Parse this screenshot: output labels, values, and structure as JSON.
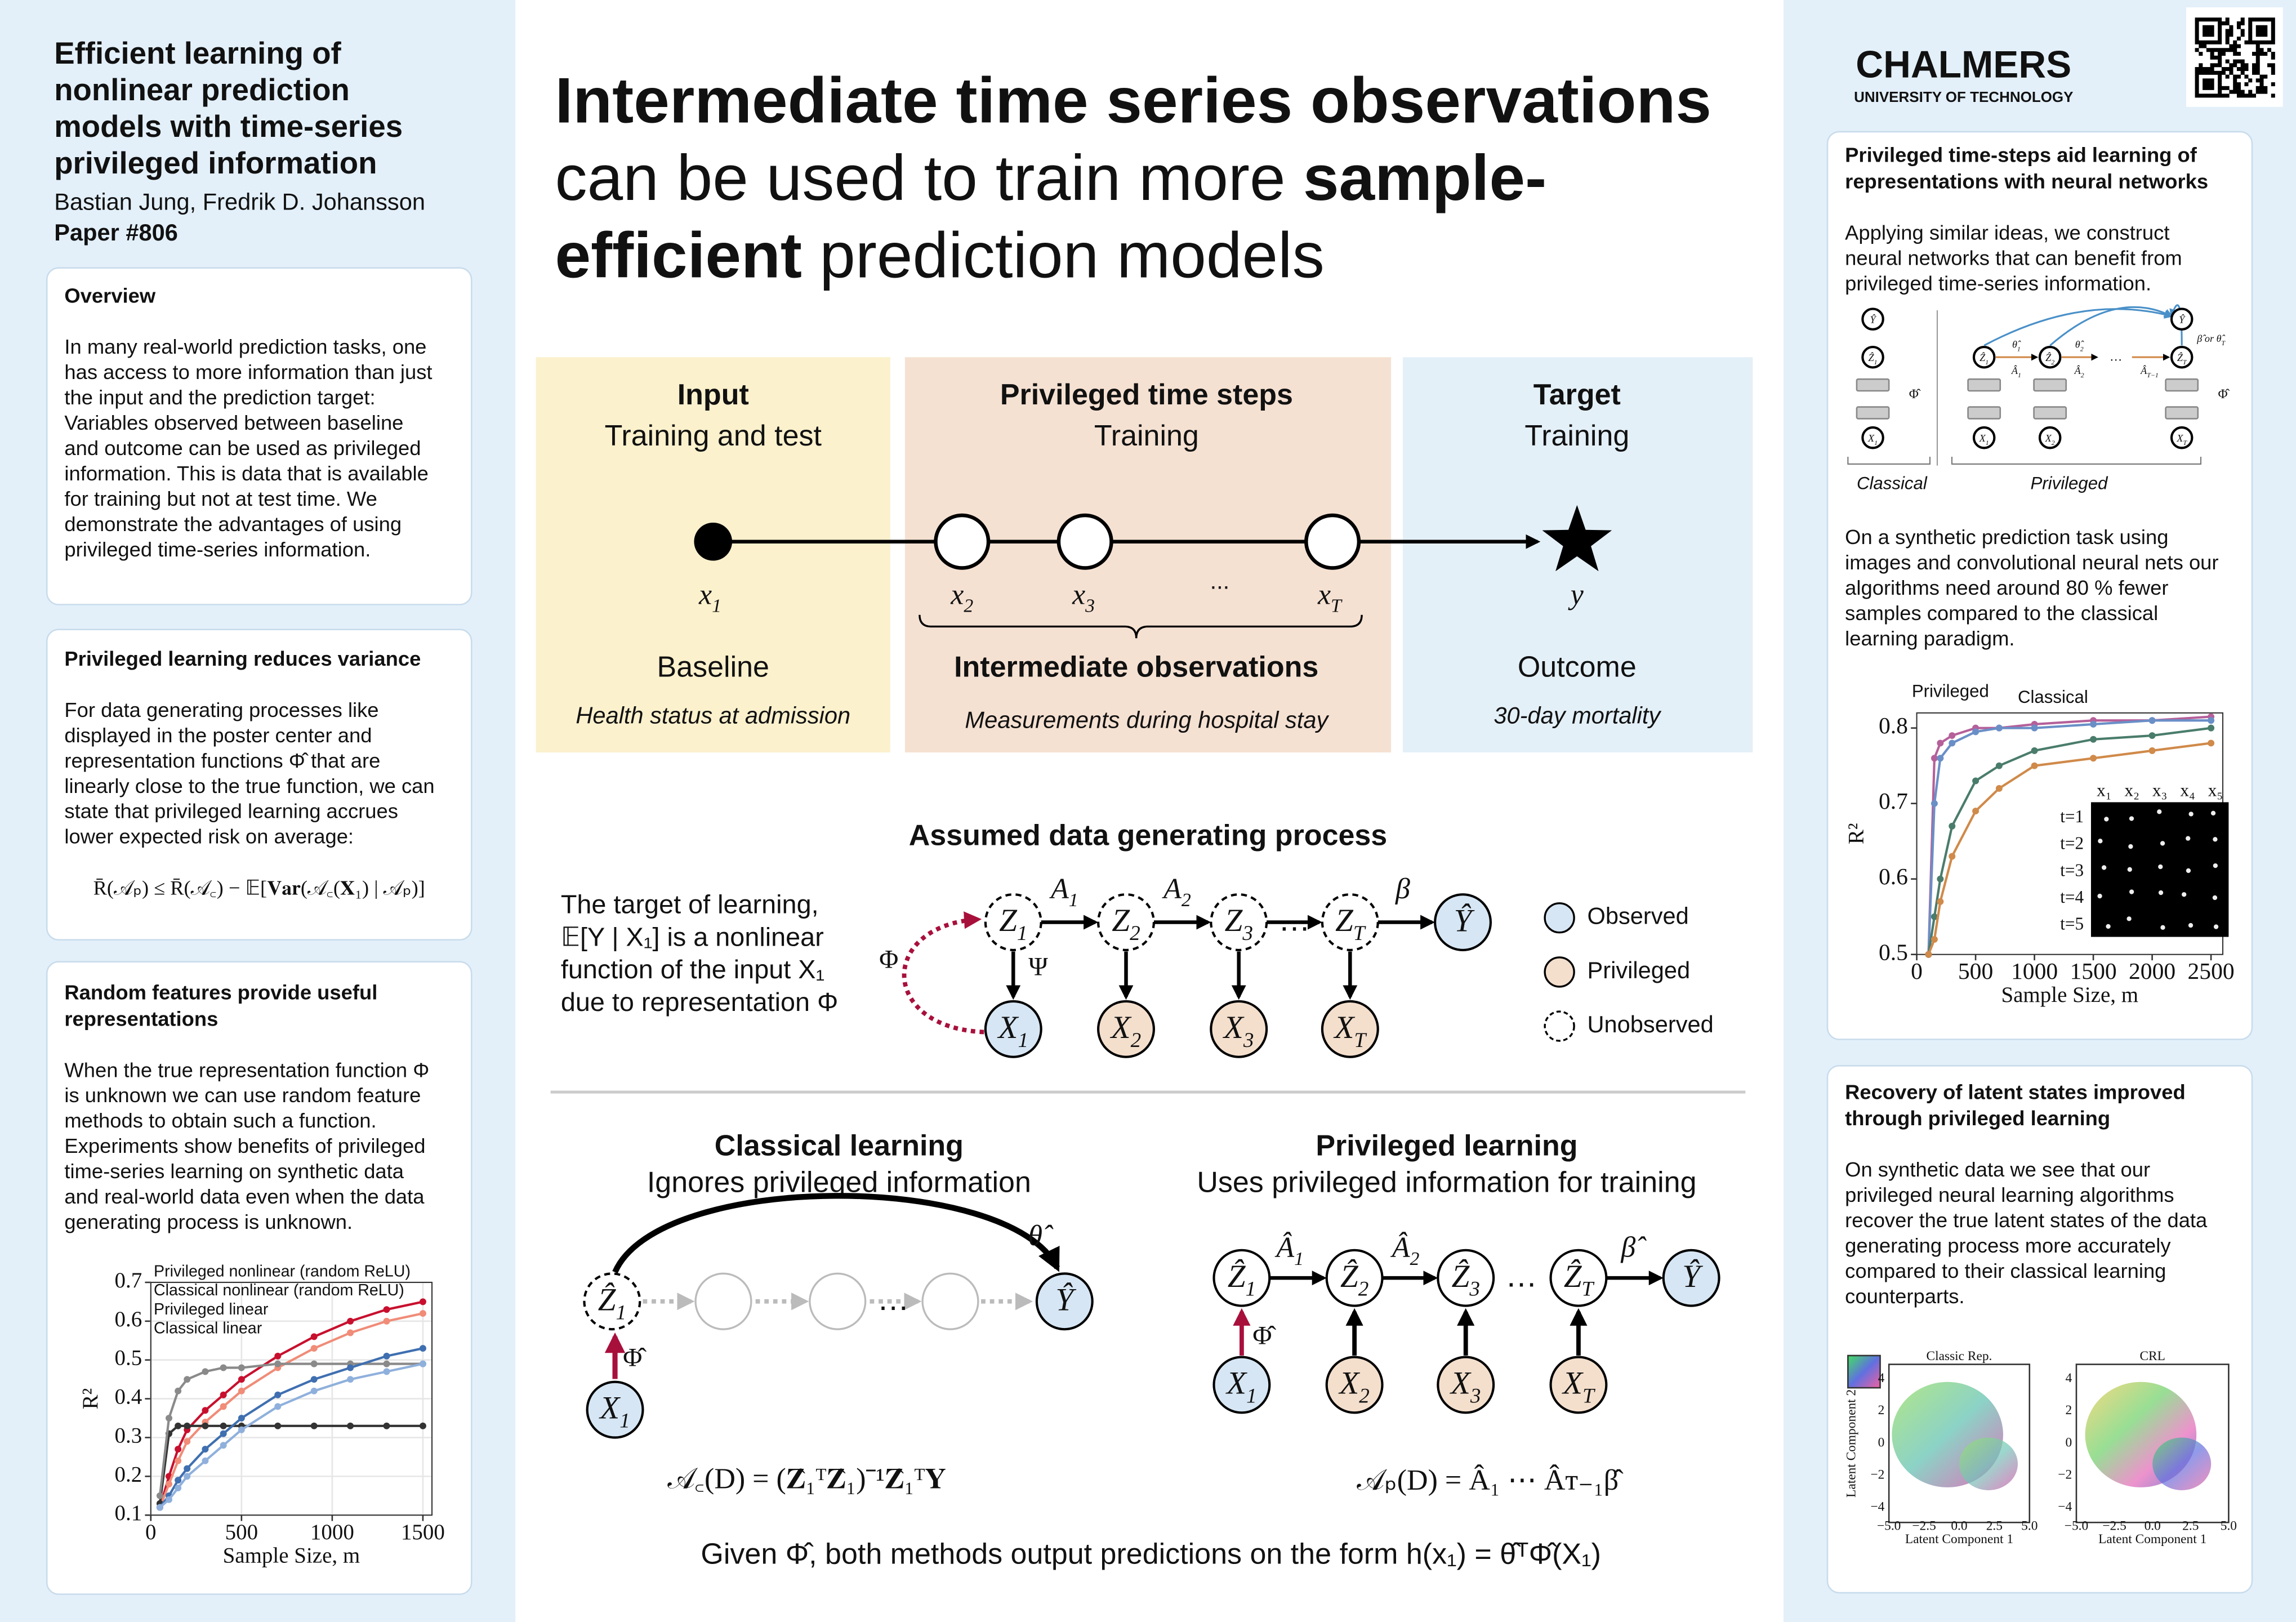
{
  "header": {
    "title": [
      "Efficient learning of",
      "nonlinear prediction",
      "models with time-series",
      "privileged information"
    ],
    "authors": "Bastian Jung, Fredrik D. Johansson",
    "paper": "Paper #806"
  },
  "overview": {
    "title": "Overview",
    "text": [
      "In many real-world prediction tasks, one",
      "has access to more information than just",
      "the input and the prediction target:",
      "Variables observed between baseline",
      "and outcome can be used as privileged",
      "information. This is data that is available",
      "for training but not at test time. We",
      "demonstrate the advantages of using",
      "privileged time-series information."
    ]
  },
  "variance": {
    "title": "Privileged learning reduces variance",
    "text": [
      "For data generating processes like",
      "displayed in the poster center and",
      "representation functions Φ̂ that are",
      "linearly close to the true function, we can",
      "state that privileged learning accrues",
      "lower expected risk on average:"
    ],
    "formula": "R̄(𝒜ₚ) ≤ R̄(𝒜꜀) − 𝔼[𝐕𝐚𝐫(𝒜꜀(𝐗₁) | 𝒜ₚ)]"
  },
  "random_features": {
    "title": [
      "Random features provide useful",
      "representations"
    ],
    "text": [
      "When the true representation function Φ",
      "is unknown we can use random feature",
      "methods to obtain such a function.",
      "Experiments show benefits of privileged",
      "time-series learning on synthetic data",
      "and real-world data even when the data",
      "generating process is unknown."
    ]
  },
  "headline": {
    "line1": "Intermediate time series observations",
    "line2": "can be used to train more",
    "line2_bold": "sample-",
    "line3_bold": "efficient",
    "line3": "prediction models"
  },
  "timeline": {
    "input": {
      "title": "Input",
      "subtitle": "Training and test",
      "nodes": [
        {
          "base": "x",
          "sub": "1"
        }
      ],
      "label": "Baseline",
      "description": "Health status at admission"
    },
    "privileged": {
      "title": "Privileged time steps",
      "subtitle": "Training",
      "nodes": [
        {
          "base": "x",
          "sub": "2"
        },
        {
          "base": "x",
          "sub": "3"
        },
        {
          "base": "x",
          "sub": "T"
        }
      ],
      "ellipsis": "...",
      "label": "Intermediate observations",
      "description": "Measurements during hospital stay"
    },
    "target": {
      "title": "Target",
      "subtitle": "Training",
      "nodes": [
        "y"
      ],
      "label": "Outcome",
      "description": "30-day mortality"
    }
  },
  "dgp": {
    "title": "Assumed data generating process",
    "text": [
      "The target of learning,",
      "𝔼[Y | X₁] is a nonlinear",
      "function of the input X₁",
      "due to representation Φ"
    ],
    "latent": [
      {
        "base": "Z",
        "sub": "1"
      },
      {
        "base": "Z",
        "sub": "2"
      },
      {
        "base": "Z",
        "sub": "3"
      },
      {
        "base": "Z",
        "sub": "T"
      }
    ],
    "observed": [
      {
        "base": "X",
        "sub": "1"
      },
      {
        "base": "X",
        "sub": "2"
      },
      {
        "base": "X",
        "sub": "3"
      },
      {
        "base": "X",
        "sub": "T"
      }
    ],
    "outcome": "Ŷ",
    "edges": [
      {
        "base": "A",
        "sub": "1"
      },
      {
        "base": "A",
        "sub": "2"
      },
      "β"
    ],
    "emission": "Ψ",
    "representation": "Φ",
    "ellipsis": "…",
    "legend": [
      "Observed",
      "Privileged",
      "Unobserved"
    ]
  },
  "classical": {
    "title": "Classical learning",
    "subtitle": "Ignores privileged information",
    "latent": {
      "base": "Ẑ",
      "sub": "1"
    },
    "input": {
      "base": "X",
      "sub": "1"
    },
    "outcome": "Ŷ",
    "representation": "Φ̂",
    "parameter": "θ̂",
    "ellipsis": "…",
    "formula": "𝒜꜀(D) = (𝐙̂₁ᵀ𝐙̂₁)⁻¹𝐙̂₁ᵀ𝐘"
  },
  "privileged_learning": {
    "title": "Privileged learning",
    "subtitle": "Uses privileged information for training",
    "latent": [
      {
        "base": "Ẑ",
        "sub": "1"
      },
      {
        "base": "Ẑ",
        "sub": "2"
      },
      {
        "base": "Ẑ",
        "sub": "3"
      },
      {
        "base": "Ẑ",
        "sub": "T"
      }
    ],
    "observed": [
      {
        "base": "X",
        "sub": "1"
      },
      {
        "base": "X",
        "sub": "2"
      },
      {
        "base": "X",
        "sub": "3"
      },
      {
        "base": "X",
        "sub": "T"
      }
    ],
    "outcome": "Ŷ",
    "edges": [
      {
        "base": "Â",
        "sub": "1"
      },
      {
        "base": "Â",
        "sub": "2"
      },
      "β̂"
    ],
    "representation": "Φ̂",
    "ellipsis": "…",
    "formula": "𝒜ₚ(D) = Â₁ ⋯ Âᴛ₋₁β̂"
  },
  "footer": "Given Φ̂, both methods output predictions on the form h(x₁) = θ̂ᵀΦ̂(X₁)",
  "logo": {
    "name": "CHALMERS",
    "subtitle": "UNIVERSITY OF TECHNOLOGY"
  },
  "neural": {
    "title": [
      "Privileged time-steps aid learning of",
      "representations with neural networks"
    ],
    "text": [
      "Applying similar ideas, we construct",
      "neural networks that can benefit from",
      "privileged time-series information."
    ],
    "diagram": {
      "classical": {
        "nodes": [
          "Ŷ",
          {
            "base": "Ẑ",
            "sub": "1"
          },
          {
            "base": "X",
            "sub": "1"
          }
        ],
        "representation": "Φ̂",
        "label": "Classical"
      },
      "privileged": {
        "latent": [
          {
            "base": "Ẑ",
            "sub": "1"
          },
          {
            "base": "Ẑ",
            "sub": "2"
          },
          {
            "base": "Ẑ",
            "sub": "T"
          }
        ],
        "observed": [
          {
            "base": "X",
            "sub": "1"
          },
          {
            "base": "X",
            "sub": "2"
          },
          {
            "base": "X",
            "sub": "T"
          }
        ],
        "outcome": "Ŷ",
        "edges": [
          {
            "base": "Â",
            "sub": "1"
          },
          {
            "base": "Â",
            "sub": "2"
          },
          {
            "base": "Â",
            "sub": "T−1"
          }
        ],
        "heads": [
          {
            "base": "θ̂",
            "sub": "1"
          },
          {
            "base": "θ̂",
            "sub": "2"
          },
          {
            "base": "β̂ or θ̂",
            "sub": "T"
          }
        ],
        "representation": "Φ̂",
        "ellipsis": "…",
        "label": "Privileged"
      }
    },
    "text2": [
      "On a synthetic prediction task using",
      "images and convolutional neural nets our",
      "algorithms need around 80 % fewer",
      "samples compared to the classical",
      "learning paradigm."
    ],
    "annotations": [
      "Privileged",
      "Classical"
    ],
    "inset": {
      "columns": [
        "x₁",
        "x₂",
        "x₃",
        "x₄",
        "x₅"
      ],
      "rows": [
        "t=1",
        "t=2",
        "t=3",
        "t=4",
        "t=5"
      ]
    }
  },
  "latent_recovery": {
    "title": [
      "Recovery of latent states improved",
      "through privileged learning"
    ],
    "text": [
      "On synthetic data we see that our",
      "privileged neural learning algorithms",
      "recover the true latent states of the data",
      "generating process more accurately",
      "compared to their classical learning",
      "counterparts."
    ],
    "plots": [
      {
        "title": "Classic Rep."
      },
      {
        "title": "CRL"
      }
    ],
    "x_label": "Latent Component 1",
    "y_label": "Latent Component 2",
    "xticks": [
      "−5.0",
      "−2.5",
      "0.0",
      "2.5",
      "5.0"
    ],
    "yticks": [
      "4",
      "2",
      "0",
      "−2",
      "−4"
    ]
  },
  "chart_data": [
    {
      "type": "line",
      "x": [
        50,
        100,
        150,
        200,
        300,
        400,
        500,
        700,
        900,
        1100,
        1300,
        1500
      ],
      "xlim": [
        0,
        1550
      ],
      "ylim": [
        0.1,
        0.7
      ],
      "xticks": [
        0,
        500,
        1000,
        1500
      ],
      "yticks": [
        0.1,
        0.2,
        0.3,
        0.4,
        0.5,
        0.6,
        0.7
      ],
      "x_label": "Sample Size, m",
      "y_label": "R²",
      "grid": true,
      "legend": "upper left",
      "series": [
        {
          "name": "Privileged nonlinear (random ReLU)",
          "color": "#c8102e",
          "values": [
            0.12,
            0.2,
            0.27,
            0.32,
            0.37,
            0.41,
            0.45,
            0.51,
            0.56,
            0.6,
            0.63,
            0.65
          ]
        },
        {
          "name": "Classical nonlinear (random ReLU)",
          "color": "#f08c78",
          "values": [
            0.12,
            0.18,
            0.24,
            0.29,
            0.34,
            0.38,
            0.42,
            0.48,
            0.53,
            0.57,
            0.6,
            0.62
          ]
        },
        {
          "name": "Privileged linear",
          "color": "#333333",
          "values": [
            0.13,
            0.31,
            0.33,
            0.33,
            0.33,
            0.33,
            0.33,
            0.33,
            0.33,
            0.33,
            0.33,
            0.33
          ]
        },
        {
          "name": "Classical linear",
          "color": "#8a8a8a",
          "values": [
            0.15,
            0.35,
            0.42,
            0.45,
            0.47,
            0.48,
            0.48,
            0.49,
            0.49,
            0.49,
            0.49,
            0.49
          ]
        },
        {
          "color": "#3f6fb0",
          "values": [
            0.12,
            0.15,
            0.19,
            0.22,
            0.27,
            0.31,
            0.35,
            0.41,
            0.45,
            0.48,
            0.51,
            0.53
          ]
        },
        {
          "color": "#8fb0dc",
          "values": [
            0.12,
            0.14,
            0.17,
            0.2,
            0.24,
            0.28,
            0.32,
            0.38,
            0.42,
            0.45,
            0.47,
            0.49
          ]
        }
      ]
    },
    {
      "type": "line",
      "x": [
        100,
        150,
        200,
        300,
        500,
        700,
        1000,
        1500,
        2000,
        2500
      ],
      "xlim": [
        0,
        2600
      ],
      "ylim": [
        0.5,
        0.82
      ],
      "xticks": [
        0,
        500,
        1000,
        1500,
        2000,
        2500
      ],
      "yticks": [
        0.5,
        0.6,
        0.7,
        0.8
      ],
      "x_label": "Sample Size, m",
      "y_label": "R²",
      "grid": false,
      "series": [
        {
          "color": "#b5609a",
          "values": [
            0.5,
            0.76,
            0.78,
            0.79,
            0.8,
            0.8,
            0.805,
            0.81,
            0.81,
            0.815
          ]
        },
        {
          "color": "#6a8fc7",
          "values": [
            0.5,
            0.7,
            0.76,
            0.78,
            0.795,
            0.8,
            0.8,
            0.805,
            0.81,
            0.81
          ]
        },
        {
          "color": "#4a7c6c",
          "values": [
            0.5,
            0.55,
            0.6,
            0.67,
            0.73,
            0.75,
            0.77,
            0.785,
            0.79,
            0.8
          ]
        },
        {
          "color": "#d08a4a",
          "values": [
            0.5,
            0.52,
            0.57,
            0.63,
            0.69,
            0.72,
            0.75,
            0.76,
            0.77,
            0.78
          ]
        }
      ]
    }
  ]
}
